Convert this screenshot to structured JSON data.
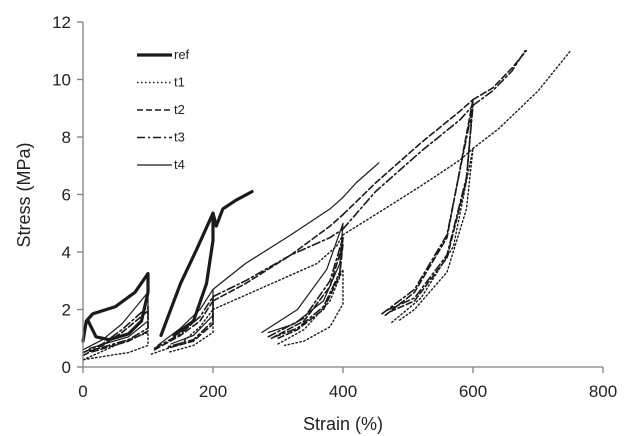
{
  "chart_data": {
    "type": "line",
    "title": "",
    "xlabel": "Strain (%)",
    "ylabel": "Stress (MPa)",
    "xlim": [
      0,
      800
    ],
    "ylim": [
      0,
      12
    ],
    "x_ticks": [
      "0",
      "200",
      "400",
      "600",
      "800"
    ],
    "y_ticks": [
      "0",
      "2",
      "4",
      "6",
      "8",
      "10",
      "12"
    ],
    "grid": false,
    "legend_position": "top-left",
    "series": [
      {
        "name": "ref",
        "style": "solid-thick",
        "color": "#1a1a1a",
        "segments": [
          [
            [
              0,
              0.9
            ],
            [
              5,
              1.6
            ],
            [
              15,
              1.85
            ],
            [
              50,
              2.1
            ],
            [
              80,
              2.6
            ],
            [
              100,
              3.25
            ],
            [
              100,
              2.6
            ],
            [
              90,
              1.6
            ],
            [
              70,
              1.15
            ],
            [
              40,
              0.95
            ],
            [
              20,
              1.05
            ],
            [
              8,
              1.6
            ]
          ],
          [
            [
              120,
              1.1
            ],
            [
              130,
              1.7
            ],
            [
              150,
              2.9
            ],
            [
              175,
              4.1
            ],
            [
              200,
              5.35
            ],
            [
              200,
              4.4
            ],
            [
              190,
              2.9
            ],
            [
              170,
              1.6
            ],
            [
              140,
              1.1
            ]
          ],
          [
            [
              200,
              5.35
            ],
            [
              205,
              4.9
            ],
            [
              215,
              5.5
            ],
            [
              235,
              5.8
            ],
            [
              260,
              6.1
            ]
          ]
        ]
      },
      {
        "name": "t1",
        "style": "dotted",
        "color": "#1a1a1a",
        "segments": [
          [
            [
              0,
              0.25
            ],
            [
              30,
              0.55
            ],
            [
              60,
              0.85
            ],
            [
              100,
              1.2
            ],
            [
              100,
              0.75
            ],
            [
              70,
              0.5
            ],
            [
              40,
              0.4
            ],
            [
              0,
              0.25
            ]
          ],
          [
            [
              105,
              0.45
            ],
            [
              150,
              0.8
            ],
            [
              180,
              1.4
            ],
            [
              200,
              2.0
            ],
            [
              200,
              1.2
            ],
            [
              170,
              0.75
            ],
            [
              130,
              0.5
            ]
          ],
          [
            [
              200,
              2.0
            ],
            [
              240,
              2.4
            ],
            [
              300,
              3.0
            ],
            [
              360,
              3.6
            ],
            [
              390,
              4.2
            ],
            [
              400,
              4.6
            ]
          ],
          [
            [
              300,
              0.8
            ],
            [
              340,
              1.3
            ],
            [
              380,
              2.3
            ],
            [
              400,
              3.4
            ],
            [
              400,
              2.2
            ],
            [
              380,
              1.4
            ],
            [
              340,
              0.9
            ],
            [
              310,
              0.75
            ]
          ],
          [
            [
              400,
              4.6
            ],
            [
              450,
              5.3
            ],
            [
              520,
              6.3
            ],
            [
              580,
              7.2
            ],
            [
              600,
              7.6
            ]
          ],
          [
            [
              475,
              1.55
            ],
            [
              520,
              2.4
            ],
            [
              570,
              4.2
            ],
            [
              600,
              7.6
            ],
            [
              590,
              5.5
            ],
            [
              560,
              3.3
            ],
            [
              510,
              2.0
            ],
            [
              485,
              1.6
            ]
          ],
          [
            [
              600,
              7.6
            ],
            [
              640,
              8.3
            ],
            [
              700,
              9.6
            ],
            [
              750,
              11.0
            ]
          ]
        ]
      },
      {
        "name": "t2",
        "style": "dashed",
        "color": "#1a1a1a",
        "segments": [
          [
            [
              0,
              0.4
            ],
            [
              30,
              0.75
            ],
            [
              60,
              1.2
            ],
            [
              100,
              1.95
            ],
            [
              100,
              1.25
            ],
            [
              70,
              0.9
            ],
            [
              40,
              0.7
            ],
            [
              10,
              0.5
            ]
          ],
          [
            [
              110,
              0.6
            ],
            [
              150,
              1.1
            ],
            [
              180,
              1.6
            ],
            [
              200,
              2.3
            ],
            [
              200,
              1.5
            ],
            [
              170,
              0.9
            ],
            [
              130,
              0.65
            ]
          ],
          [
            [
              200,
              2.3
            ],
            [
              250,
              2.9
            ],
            [
              320,
              3.9
            ],
            [
              380,
              4.9
            ],
            [
              400,
              5.3
            ]
          ],
          [
            [
              290,
              1.0
            ],
            [
              340,
              1.6
            ],
            [
              380,
              2.8
            ],
            [
              400,
              4.3
            ],
            [
              395,
              3.2
            ],
            [
              370,
              2.0
            ],
            [
              330,
              1.3
            ],
            [
              300,
              1.0
            ]
          ],
          [
            [
              400,
              5.3
            ],
            [
              450,
              6.4
            ],
            [
              520,
              7.8
            ],
            [
              580,
              8.9
            ],
            [
              600,
              9.3
            ]
          ],
          [
            [
              465,
              1.8
            ],
            [
              510,
              2.6
            ],
            [
              560,
              4.5
            ],
            [
              600,
              9.3
            ],
            [
              590,
              6.5
            ],
            [
              560,
              3.8
            ],
            [
              510,
              2.3
            ],
            [
              470,
              1.9
            ]
          ],
          [
            [
              600,
              9.3
            ],
            [
              630,
              9.7
            ],
            [
              660,
              10.4
            ],
            [
              682,
              11.0
            ]
          ]
        ]
      },
      {
        "name": "t3",
        "style": "dashdot",
        "color": "#1a1a1a",
        "segments": [
          [
            [
              0,
              0.5
            ],
            [
              30,
              0.8
            ],
            [
              60,
              1.3
            ],
            [
              100,
              2.1
            ],
            [
              100,
              1.35
            ],
            [
              70,
              0.95
            ],
            [
              40,
              0.75
            ],
            [
              10,
              0.55
            ]
          ],
          [
            [
              110,
              0.65
            ],
            [
              150,
              1.15
            ],
            [
              180,
              1.75
            ],
            [
              200,
              2.45
            ],
            [
              200,
              1.6
            ],
            [
              170,
              0.95
            ],
            [
              130,
              0.7
            ]
          ],
          [
            [
              200,
              2.45
            ],
            [
              250,
              3.0
            ],
            [
              320,
              3.9
            ],
            [
              380,
              4.5
            ],
            [
              400,
              4.8
            ]
          ],
          [
            [
              285,
              1.05
            ],
            [
              340,
              1.7
            ],
            [
              380,
              3.0
            ],
            [
              400,
              4.5
            ],
            [
              395,
              3.3
            ],
            [
              370,
              2.1
            ],
            [
              330,
              1.35
            ],
            [
              295,
              1.05
            ]
          ],
          [
            [
              400,
              4.8
            ],
            [
              450,
              6.1
            ],
            [
              520,
              7.5
            ],
            [
              580,
              8.6
            ],
            [
              600,
              9.1
            ]
          ],
          [
            [
              460,
              1.85
            ],
            [
              510,
              2.7
            ],
            [
              560,
              4.6
            ],
            [
              600,
              9.1
            ],
            [
              590,
              6.6
            ],
            [
              560,
              3.9
            ],
            [
              510,
              2.4
            ],
            [
              465,
              1.95
            ]
          ],
          [
            [
              600,
              9.1
            ],
            [
              630,
              9.6
            ],
            [
              660,
              10.3
            ],
            [
              680,
              11.0
            ]
          ]
        ]
      },
      {
        "name": "t4",
        "style": "solid-thin",
        "color": "#1a1a1a",
        "segments": [
          [
            [
              0,
              0.6
            ],
            [
              30,
              0.95
            ],
            [
              60,
              1.5
            ],
            [
              100,
              2.6
            ],
            [
              100,
              1.6
            ],
            [
              70,
              1.05
            ],
            [
              40,
              0.85
            ],
            [
              10,
              0.65
            ]
          ],
          [
            [
              115,
              0.75
            ],
            [
              150,
              1.35
            ],
            [
              180,
              2.0
            ],
            [
              200,
              2.7
            ],
            [
              200,
              1.8
            ],
            [
              170,
              1.1
            ],
            [
              135,
              0.8
            ]
          ],
          [
            [
              200,
              2.7
            ],
            [
              250,
              3.6
            ],
            [
              320,
              4.6
            ],
            [
              380,
              5.5
            ],
            [
              400,
              5.9
            ]
          ],
          [
            [
              275,
              1.2
            ],
            [
              330,
              2.0
            ],
            [
              375,
              3.4
            ],
            [
              400,
              5.0
            ],
            [
              395,
              3.6
            ],
            [
              370,
              2.3
            ],
            [
              325,
              1.5
            ],
            [
              285,
              1.2
            ]
          ],
          [
            [
              400,
              5.9
            ],
            [
              420,
              6.4
            ],
            [
              440,
              6.8
            ],
            [
              455,
              7.1
            ]
          ]
        ]
      }
    ]
  }
}
